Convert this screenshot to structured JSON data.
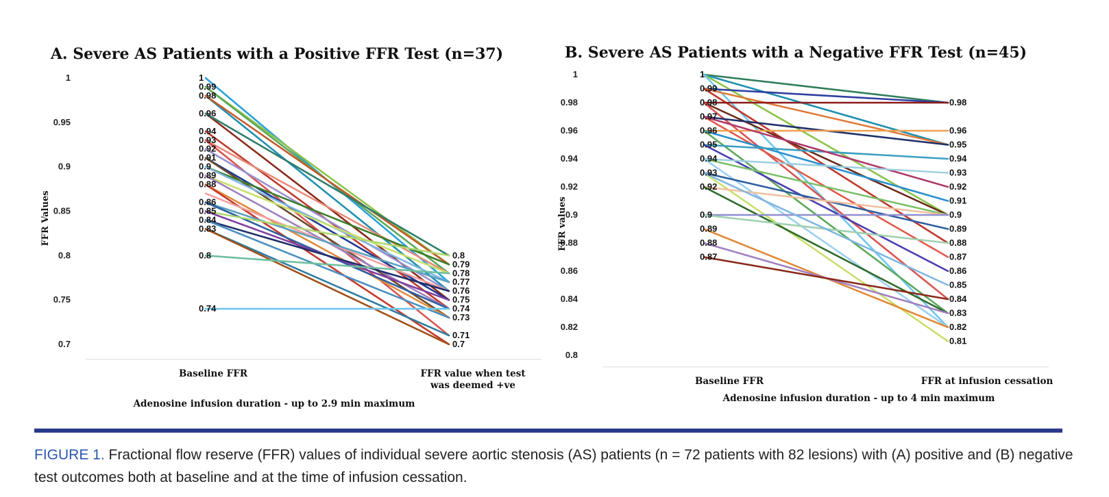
{
  "chart_data": [
    {
      "type": "line",
      "title": "A. Severe AS Patients with a Positive FFR Test (n=37)",
      "ylabel": "FFR Values",
      "xlabel": "Adenosine infusion duration - up to 2.9 min maximum",
      "categories": [
        "Baseline FFR",
        "FFR value when test was deemed +ve"
      ],
      "ylim": [
        0.7,
        1.0
      ],
      "yticks": [
        "1",
        "0.95",
        "0.9",
        "0.85",
        "0.8",
        "0.75",
        "0.7"
      ],
      "baseline_labels": [
        "1",
        "0.99",
        "0.98",
        "0.96",
        "0.94",
        "0.93",
        "0.92",
        "0.91",
        "0.9",
        "0.89",
        "0.88",
        "0.86",
        "0.85",
        "0.84",
        "0.83",
        "0.8",
        "0.74"
      ],
      "end_labels": [
        "0.8",
        "0.79",
        "0.78",
        "0.77",
        "0.76",
        "0.75",
        "0.74",
        "0.73",
        "0.71",
        "0.7"
      ],
      "series": [
        {
          "start": 1.0,
          "end": 0.77,
          "color": "#2aa0dd"
        },
        {
          "start": 0.99,
          "end": 0.79,
          "color": "#8bc34a"
        },
        {
          "start": 0.99,
          "end": 0.78,
          "color": "#5ba85a"
        },
        {
          "start": 0.98,
          "end": 0.76,
          "color": "#1f8fb0"
        },
        {
          "start": 0.98,
          "end": 0.79,
          "color": "#c45a2a"
        },
        {
          "start": 0.96,
          "end": 0.75,
          "color": "#8b2a1a"
        },
        {
          "start": 0.96,
          "end": 0.8,
          "color": "#2e7d6b"
        },
        {
          "start": 0.94,
          "end": 0.74,
          "color": "#c0392b"
        },
        {
          "start": 0.93,
          "end": 0.78,
          "color": "#e88a7a"
        },
        {
          "start": 0.93,
          "end": 0.71,
          "color": "#d9534f"
        },
        {
          "start": 0.92,
          "end": 0.76,
          "color": "#9b8fd0"
        },
        {
          "start": 0.91,
          "end": 0.75,
          "color": "#1f3a93"
        },
        {
          "start": 0.91,
          "end": 0.73,
          "color": "#6b4a2a"
        },
        {
          "start": 0.9,
          "end": 0.79,
          "color": "#3a7d2a"
        },
        {
          "start": 0.9,
          "end": 0.77,
          "color": "#7fb6e0"
        },
        {
          "start": 0.89,
          "end": 0.78,
          "color": "#c8e06a"
        },
        {
          "start": 0.89,
          "end": 0.74,
          "color": "#a080c0"
        },
        {
          "start": 0.88,
          "end": 0.73,
          "color": "#e08a3a"
        },
        {
          "start": 0.88,
          "end": 0.7,
          "color": "#c43a2a"
        },
        {
          "start": 0.87,
          "end": 0.76,
          "color": "#f0a0a0"
        },
        {
          "start": 0.86,
          "end": 0.77,
          "color": "#5aa0c0"
        },
        {
          "start": 0.86,
          "end": 0.74,
          "color": "#2e5fa0"
        },
        {
          "start": 0.85,
          "end": 0.8,
          "color": "#b0d870"
        },
        {
          "start": 0.85,
          "end": 0.75,
          "color": "#7f3fa0"
        },
        {
          "start": 0.84,
          "end": 0.76,
          "color": "#1f2f6a"
        },
        {
          "start": 0.84,
          "end": 0.73,
          "color": "#4a90c0"
        },
        {
          "start": 0.83,
          "end": 0.71,
          "color": "#2e7da0"
        },
        {
          "start": 0.83,
          "end": 0.7,
          "color": "#a0501a"
        },
        {
          "start": 0.8,
          "end": 0.78,
          "color": "#6fbf9f"
        },
        {
          "start": 0.74,
          "end": 0.74,
          "color": "#6ec6f0"
        }
      ]
    },
    {
      "type": "line",
      "title": "B. Severe AS Patients with a Negative FFR Test (n=45)",
      "ylabel": "FFR values",
      "xlabel": "Adenosine infusion duration - up to 4 min maximum",
      "categories": [
        "Baseline FFR",
        "FFR at infusion cessation"
      ],
      "ylim": [
        0.8,
        1.0
      ],
      "yticks": [
        "1",
        "0.98",
        "0.96",
        "0.94",
        "0.92",
        "0.9",
        "0.88",
        "0.86",
        "0.84",
        "0.82",
        "0.8"
      ],
      "baseline_labels": [
        "1",
        "0.99",
        "0.98",
        "0.97",
        "0.96",
        "0.95",
        "0.94",
        "0.93",
        "0.92",
        "0.9",
        "0.89",
        "0.88",
        "0.87"
      ],
      "end_labels": [
        "0.98",
        "0.96",
        "0.95",
        "0.94",
        "0.93",
        "0.92",
        "0.91",
        "0.9",
        "0.89",
        "0.88",
        "0.87",
        "0.86",
        "0.85",
        "0.84",
        "0.83",
        "0.82",
        "0.81"
      ],
      "series": [
        {
          "start": 1.0,
          "end": 0.98,
          "color": "#2e7d5a"
        },
        {
          "start": 1.0,
          "end": 0.95,
          "color": "#1f8fb0"
        },
        {
          "start": 1.0,
          "end": 0.9,
          "color": "#8bc34a"
        },
        {
          "start": 1.0,
          "end": 0.82,
          "color": "#6ec6f0"
        },
        {
          "start": 0.99,
          "end": 0.98,
          "color": "#2f3fa0"
        },
        {
          "start": 0.99,
          "end": 0.95,
          "color": "#e07a3a"
        },
        {
          "start": 0.99,
          "end": 0.88,
          "color": "#c0392b"
        },
        {
          "start": 0.98,
          "end": 0.98,
          "color": "#8b1a1a"
        },
        {
          "start": 0.98,
          "end": 0.9,
          "color": "#6b2a1a"
        },
        {
          "start": 0.98,
          "end": 0.84,
          "color": "#d9534f"
        },
        {
          "start": 0.97,
          "end": 0.95,
          "color": "#1f2f6a"
        },
        {
          "start": 0.97,
          "end": 0.87,
          "color": "#e05a4a"
        },
        {
          "start": 0.96,
          "end": 0.96,
          "color": "#f0a050"
        },
        {
          "start": 0.96,
          "end": 0.91,
          "color": "#2a90d0"
        },
        {
          "start": 0.96,
          "end": 0.83,
          "color": "#5ba85a"
        },
        {
          "start": 0.95,
          "end": 0.94,
          "color": "#3a9fc0"
        },
        {
          "start": 0.95,
          "end": 0.86,
          "color": "#4a3fb0"
        },
        {
          "start": 0.94,
          "end": 0.9,
          "color": "#7ac06a"
        },
        {
          "start": 0.94,
          "end": 0.82,
          "color": "#9bd0f0"
        },
        {
          "start": 0.93,
          "end": 0.89,
          "color": "#2e5fa0"
        },
        {
          "start": 0.93,
          "end": 0.81,
          "color": "#c8e06a"
        },
        {
          "start": 0.92,
          "end": 0.9,
          "color": "#f0c0a0"
        },
        {
          "start": 0.92,
          "end": 0.83,
          "color": "#2e6b2a"
        },
        {
          "start": 0.9,
          "end": 0.9,
          "color": "#8f8fd0"
        },
        {
          "start": 0.9,
          "end": 0.88,
          "color": "#a0d0b0"
        },
        {
          "start": 0.89,
          "end": 0.82,
          "color": "#e08a3a"
        },
        {
          "start": 0.88,
          "end": 0.83,
          "color": "#a080c0"
        },
        {
          "start": 0.87,
          "end": 0.84,
          "color": "#8b2a1a"
        },
        {
          "start": 0.97,
          "end": 0.92,
          "color": "#b03a6a"
        },
        {
          "start": 0.94,
          "end": 0.93,
          "color": "#9fd0e0"
        },
        {
          "start": 0.93,
          "end": 0.85,
          "color": "#7fb6e0"
        }
      ]
    }
  ],
  "caption": {
    "label": "FIGURE 1.",
    "text": " Fractional flow reserve (FFR) values of individual severe aortic stenosis (AS) patients (n = 72 patients with 82 lesions) with (A) positive and (B) negative test outcomes both at baseline and at the time of infusion cessation."
  }
}
